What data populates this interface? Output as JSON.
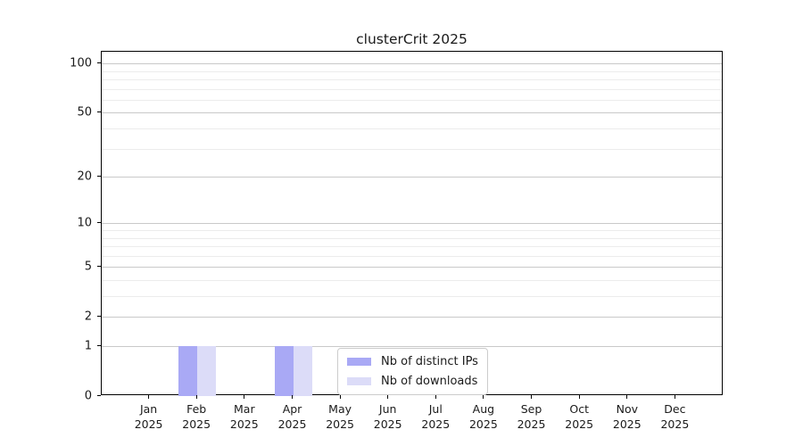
{
  "figure": {
    "title": "clusterCrit 2025"
  },
  "chart_data": {
    "type": "bar",
    "title": "clusterCrit 2025",
    "categories": [
      "Jan",
      "Feb",
      "Mar",
      "Apr",
      "May",
      "Jun",
      "Jul",
      "Aug",
      "Sep",
      "Oct",
      "Nov",
      "Dec"
    ],
    "year_label": "2025",
    "series": [
      {
        "name": "Nb of distinct IPs",
        "color": "#a9a9f5",
        "values": [
          0,
          1,
          0,
          1,
          0,
          0,
          0,
          0,
          0,
          0,
          0,
          0
        ]
      },
      {
        "name": "Nb of downloads",
        "color": "#dcdcf8",
        "values": [
          0,
          1,
          0,
          1,
          0,
          0,
          0,
          0,
          0,
          0,
          0,
          0
        ]
      }
    ],
    "y_scale": "log1p",
    "y_ticks_major": [
      0,
      1,
      2,
      5,
      10,
      20,
      50,
      100
    ],
    "y_ticks_minor": [
      3,
      4,
      6,
      7,
      8,
      9,
      30,
      40,
      60,
      70,
      80,
      90
    ],
    "y_top": 118,
    "grid": true,
    "legend_position": "lower center",
    "legend": [
      "Nb of distinct IPs",
      "Nb of downloads"
    ],
    "colors": {
      "grid_major": "#c9c9c9",
      "grid_minor": "#ececec",
      "axis": "#000000",
      "text": "#1a1a1a",
      "background": "#ffffff"
    }
  }
}
